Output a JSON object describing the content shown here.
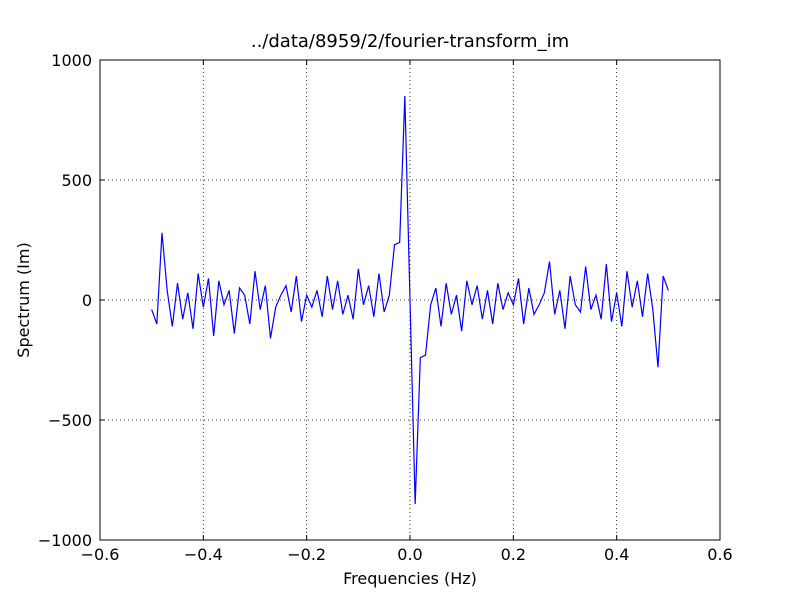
{
  "chart_data": {
    "type": "line",
    "title": "../data/8959/2/fourier-transform_im",
    "xlabel": "Frequencies (Hz)",
    "ylabel": "Spectrum (Im)",
    "x": [
      -0.5,
      -0.49,
      -0.48,
      -0.47,
      -0.46,
      -0.45,
      -0.44,
      -0.43,
      -0.42,
      -0.41,
      -0.4,
      -0.39,
      -0.38,
      -0.37,
      -0.36,
      -0.35,
      -0.34,
      -0.33,
      -0.32,
      -0.31,
      -0.3,
      -0.29,
      -0.28,
      -0.27,
      -0.26,
      -0.25,
      -0.24,
      -0.23,
      -0.22,
      -0.21,
      -0.2,
      -0.19,
      -0.18,
      -0.17,
      -0.16,
      -0.15,
      -0.14,
      -0.13,
      -0.12,
      -0.11,
      -0.1,
      -0.09,
      -0.08,
      -0.07,
      -0.06,
      -0.05,
      -0.04,
      -0.03,
      -0.02,
      -0.01,
      0,
      0.01,
      0.02,
      0.03,
      0.04,
      0.05,
      0.06,
      0.07,
      0.08,
      0.09,
      0.1,
      0.11,
      0.12,
      0.13,
      0.14,
      0.15,
      0.16,
      0.17,
      0.18,
      0.19,
      0.2,
      0.21,
      0.22,
      0.23,
      0.24,
      0.25,
      0.26,
      0.27,
      0.28,
      0.29,
      0.3,
      0.31,
      0.32,
      0.33,
      0.34,
      0.35,
      0.36,
      0.37,
      0.38,
      0.39,
      0.4,
      0.41,
      0.42,
      0.43,
      0.44,
      0.45,
      0.46,
      0.47,
      0.48,
      0.49,
      0.5
    ],
    "series": [
      {
        "name": "Spectrum (Im)",
        "color": "#0000ff",
        "values": [
          -40,
          -100,
          280,
          40,
          -110,
          70,
          -80,
          30,
          -120,
          110,
          -30,
          90,
          -150,
          80,
          -20,
          40,
          -140,
          50,
          20,
          -100,
          120,
          -40,
          60,
          -160,
          -30,
          20,
          60,
          -50,
          100,
          -90,
          20,
          -30,
          40,
          -70,
          100,
          -40,
          80,
          -60,
          20,
          -80,
          130,
          -20,
          60,
          -70,
          110,
          -50,
          20,
          230,
          240,
          850,
          0,
          -850,
          -240,
          -230,
          -20,
          50,
          -110,
          70,
          -60,
          20,
          -130,
          80,
          -20,
          60,
          -80,
          40,
          -100,
          70,
          -40,
          30,
          -20,
          90,
          -100,
          50,
          -60,
          -20,
          30,
          160,
          -60,
          40,
          -120,
          100,
          -20,
          -50,
          140,
          -40,
          20,
          -80,
          150,
          -90,
          30,
          -110,
          120,
          -30,
          80,
          -70,
          110,
          -40,
          -280,
          100,
          40
        ]
      }
    ],
    "xlim": [
      -0.6,
      0.6
    ],
    "ylim": [
      -1000,
      1000
    ],
    "xticks": [
      {
        "value": -0.6,
        "label": "−0.6"
      },
      {
        "value": -0.4,
        "label": "−0.4"
      },
      {
        "value": -0.2,
        "label": "−0.2"
      },
      {
        "value": 0,
        "label": "0.0"
      },
      0.2,
      0.4,
      0.6
    ],
    "yticks": [
      {
        "value": -1000,
        "label": "−1000"
      },
      {
        "value": -500,
        "label": "−500"
      },
      0,
      500,
      1000
    ],
    "grid": true
  }
}
